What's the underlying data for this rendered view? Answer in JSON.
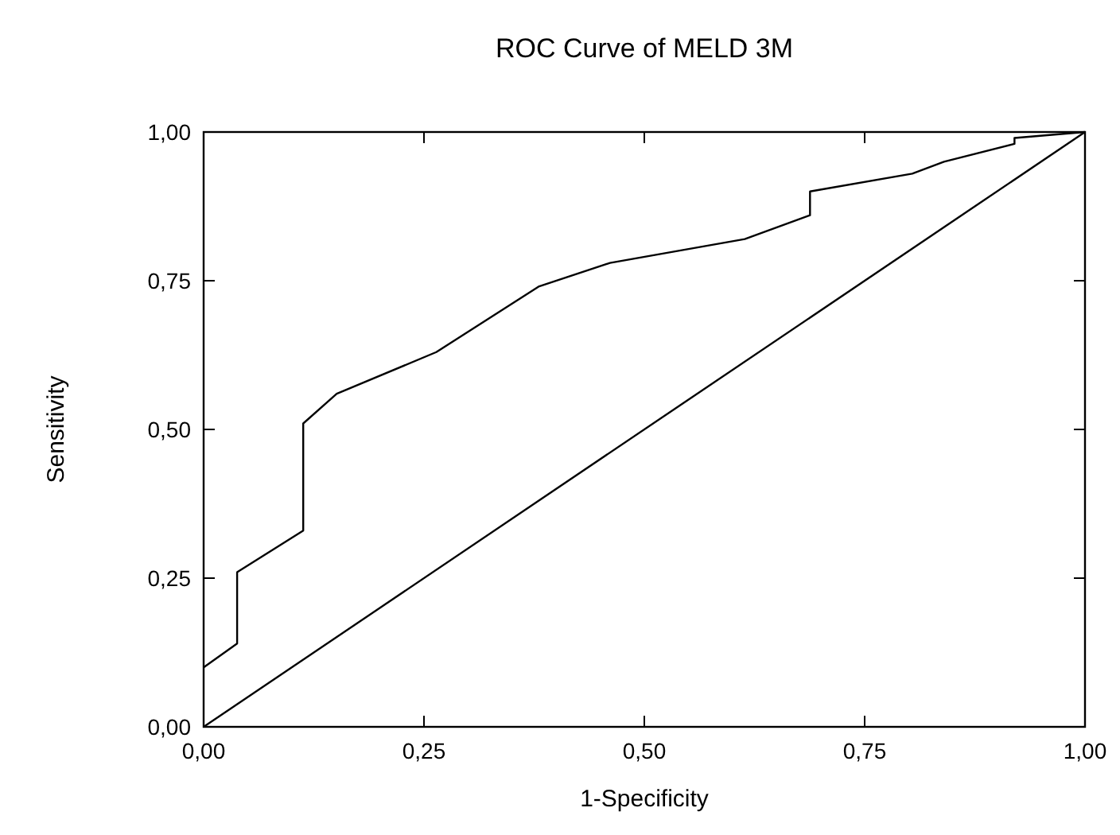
{
  "chart_data": {
    "type": "line",
    "title": "ROC Curve of MELD 3M",
    "xlabel": "1-Specificity",
    "ylabel": "Sensitivity",
    "series": [
      {
        "color": "#000000",
        "x": [
          0,
          0.038,
          0.038,
          0.113,
          0.113,
          0.151,
          0.264,
          0.38,
          0.461,
          0.614,
          0.688,
          0.688,
          0.804,
          0.84,
          0.92,
          0.92,
          1
        ],
        "values": [
          0.1,
          0.14,
          0.26,
          0.33,
          0.51,
          0.56,
          0.63,
          0.74,
          0.78,
          0.82,
          0.86,
          0.9,
          0.93,
          0.95,
          0.98,
          0.99,
          1
        ]
      },
      {
        "color": "#000000",
        "x": [
          0,
          1
        ],
        "values": [
          0,
          1
        ]
      }
    ],
    "xlim": [
      0,
      1
    ],
    "ylim": [
      0,
      1
    ],
    "xticks": [
      {
        "value": 0,
        "label": "0,00"
      },
      {
        "value": 0.25,
        "label": "0,25"
      },
      {
        "value": 0.5,
        "label": "0,50"
      },
      {
        "value": 0.75,
        "label": "0,75"
      },
      {
        "value": 1,
        "label": "1,00"
      }
    ],
    "yticks": [
      {
        "value": 0,
        "label": "0,00"
      },
      {
        "value": 0.25,
        "label": "0,25"
      },
      {
        "value": 0.5,
        "label": "0,50"
      },
      {
        "value": 0.75,
        "label": "0,75"
      },
      {
        "value": 1,
        "label": "1,00"
      }
    ],
    "grid": false,
    "marker": "none",
    "line_style": "solid"
  }
}
